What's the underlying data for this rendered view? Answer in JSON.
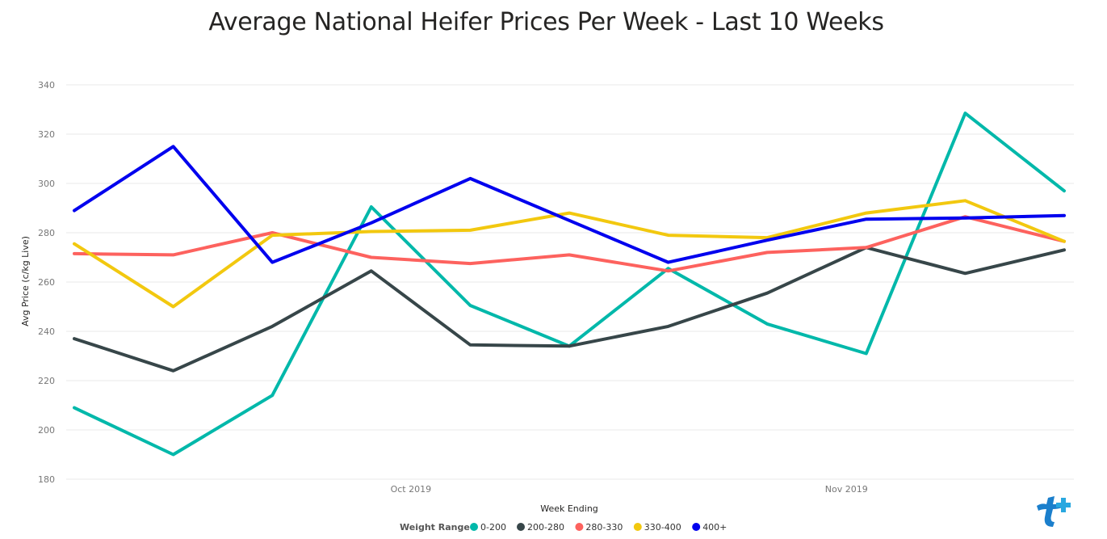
{
  "chart_data": {
    "type": "line",
    "title": "Average National Heifer Prices Per Week - Last 10 Weeks",
    "xlabel": "Week Ending",
    "ylabel": "Avg Price (c/kg Live)",
    "ylim": [
      180,
      340
    ],
    "yticks": [
      180,
      200,
      220,
      240,
      260,
      280,
      300,
      320,
      340
    ],
    "x_tick_labels": [
      {
        "label": "Oct 2019",
        "x": 3.4
      },
      {
        "label": "Nov 2019",
        "x": 7.8
      }
    ],
    "x": [
      0,
      1,
      2,
      3,
      4,
      5,
      6,
      7,
      8,
      9,
      10
    ],
    "grid": true,
    "legend": {
      "title": "Weight Range",
      "placement": "bottom"
    },
    "series": [
      {
        "name": "0-200",
        "color": "#01B8AA",
        "values": [
          209,
          190,
          214,
          290.5,
          250.5,
          234,
          265.5,
          243,
          231,
          328.5,
          297
        ]
      },
      {
        "name": "200-280",
        "color": "#374649",
        "values": [
          237,
          224,
          242,
          264.5,
          234.5,
          234,
          242,
          255.5,
          274,
          263.5,
          273
        ]
      },
      {
        "name": "280-330",
        "color": "#FD625E",
        "values": [
          271.5,
          271,
          280,
          270,
          267.5,
          271,
          264.5,
          272,
          274,
          286.5,
          276.5
        ]
      },
      {
        "name": "330-400",
        "color": "#F2C80F",
        "values": [
          275.5,
          250,
          279,
          280.5,
          281,
          288,
          279,
          278,
          288,
          293,
          276.5
        ]
      },
      {
        "name": "400+",
        "color": "#0000EE",
        "values": [
          289,
          315,
          268,
          284,
          302,
          285,
          268,
          277,
          285.5,
          286,
          287
        ]
      }
    ]
  }
}
